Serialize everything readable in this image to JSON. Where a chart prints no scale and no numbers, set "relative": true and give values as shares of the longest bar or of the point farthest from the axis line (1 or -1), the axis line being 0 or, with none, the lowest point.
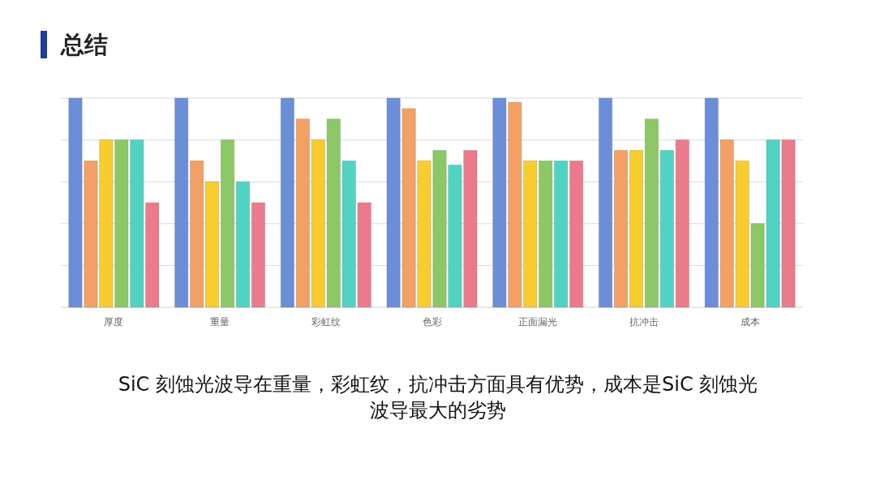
{
  "chart_data": {
    "type": "bar",
    "title": "总结",
    "relative": true,
    "grid": "y",
    "categories": [
      "厚度",
      "重量",
      "彩虹纹",
      "色彩",
      "正面漏光",
      "抗冲击",
      "成本"
    ],
    "series": [
      {
        "color": "#6a8ed8",
        "values": [
          1,
          1,
          1,
          1,
          1,
          1,
          1
        ]
      },
      {
        "color": "#f4a064",
        "values": [
          0.7,
          0.7,
          0.9,
          0.95,
          0.98,
          0.75,
          0.8
        ]
      },
      {
        "color": "#f9cc2e",
        "values": [
          0.8,
          0.6,
          0.8,
          0.7,
          0.7,
          0.75,
          0.7
        ]
      },
      {
        "color": "#8cc866",
        "values": [
          0.8,
          0.8,
          0.9,
          0.75,
          0.7,
          0.9,
          0.4
        ]
      },
      {
        "color": "#4fd4c4",
        "values": [
          0.8,
          0.6,
          0.7,
          0.68,
          0.7,
          0.75,
          0.8
        ]
      },
      {
        "color": "#ec7a8a",
        "values": [
          0.5,
          0.5,
          0.5,
          0.75,
          0.7,
          0.8,
          0.8
        ]
      }
    ],
    "annotations": [
      "SiC 刻蚀光波导在重量，彩虹纹，抗冲击方面具有优势，成本是SiC 刻蚀光波导最大的劣势"
    ]
  }
}
